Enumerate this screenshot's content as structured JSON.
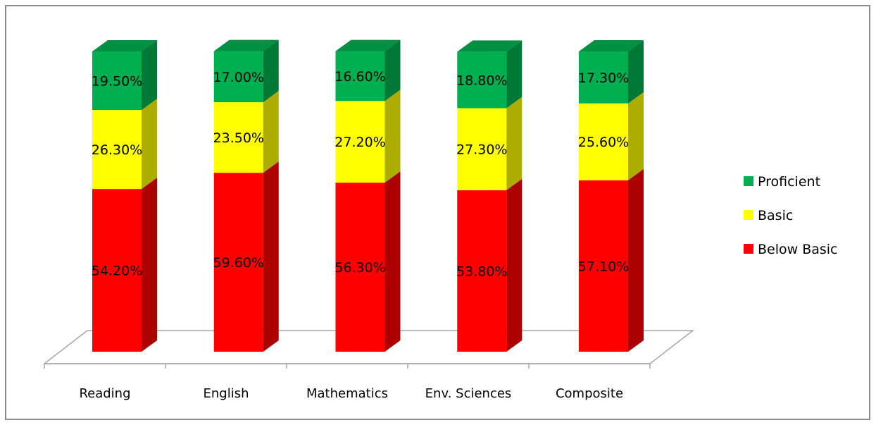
{
  "chart_data": {
    "type": "bar",
    "stacked": true,
    "three_d": true,
    "categories": [
      "Reading",
      "English",
      "Mathematics",
      "Env. Sciences",
      "Composite"
    ],
    "series": [
      {
        "name": "Below Basic",
        "color": "#ff0000",
        "values": [
          54.2,
          59.6,
          56.3,
          53.8,
          57.1
        ],
        "labels": [
          "54.20%",
          "59.60%",
          "56.30%",
          "53.80%",
          "57.10%"
        ]
      },
      {
        "name": "Basic",
        "color": "#ffff00",
        "values": [
          26.3,
          23.5,
          27.2,
          27.3,
          25.6
        ],
        "labels": [
          "26.30%",
          "23.50%",
          "27.20%",
          "27.30%",
          "25.60%"
        ]
      },
      {
        "name": "Proficient",
        "color": "#00b050",
        "values": [
          19.5,
          17.0,
          16.6,
          18.8,
          17.3
        ],
        "labels": [
          "19.50%",
          "17.00%",
          "16.60%",
          "18.80%",
          "17.30%"
        ]
      }
    ],
    "ylim": [
      0,
      100
    ],
    "legend": "right",
    "grid": false
  }
}
